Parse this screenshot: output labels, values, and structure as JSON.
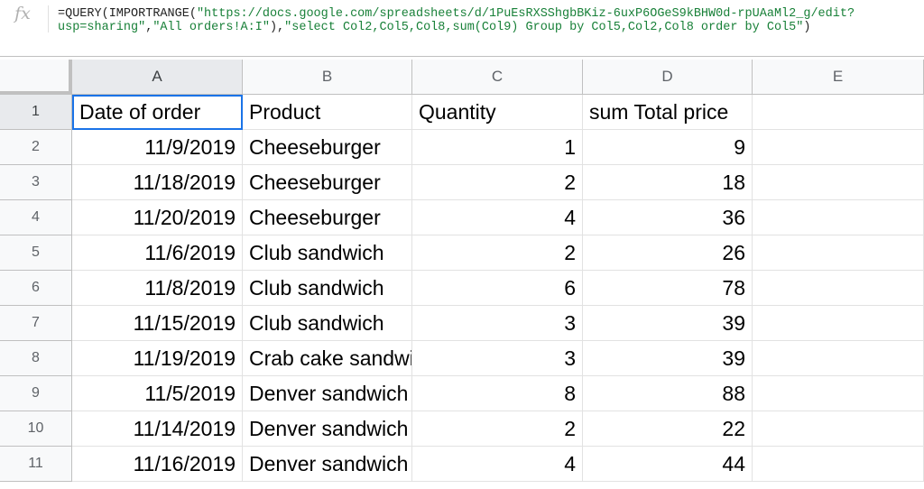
{
  "formula_bar": {
    "icon": "fx-icon",
    "prefix": "=QUERY(IMPORTRANGE(",
    "url_string": "\"https://docs.google.com/spreadsheets/d/1PuEsRXSShgbBKiz-6uxP6OGeS9kBHW0d-rpUAaMl2_g/edit?\nusp=sharing\"",
    "sep1": ",",
    "range_string": "\"All orders!A:I\"",
    "sep2": "),",
    "query_string": "\"select Col2,Col5,Col8,sum(Col9) Group by Col5,Col2,Col8 order by Col5\"",
    "suffix": ")"
  },
  "columns": [
    "A",
    "B",
    "C",
    "D",
    "E"
  ],
  "rows": [
    {
      "num": "1",
      "a": "Date of order",
      "b": "Product",
      "c": "Quantity",
      "d": "sum Total price",
      "e": ""
    },
    {
      "num": "2",
      "a": "11/9/2019",
      "b": "Cheeseburger",
      "c": "1",
      "d": "9",
      "e": ""
    },
    {
      "num": "3",
      "a": "11/18/2019",
      "b": "Cheeseburger",
      "c": "2",
      "d": "18",
      "e": ""
    },
    {
      "num": "4",
      "a": "11/20/2019",
      "b": "Cheeseburger",
      "c": "4",
      "d": "36",
      "e": ""
    },
    {
      "num": "5",
      "a": "11/6/2019",
      "b": "Club sandwich",
      "c": "2",
      "d": "26",
      "e": ""
    },
    {
      "num": "6",
      "a": "11/8/2019",
      "b": "Club sandwich",
      "c": "6",
      "d": "78",
      "e": ""
    },
    {
      "num": "7",
      "a": "11/15/2019",
      "b": "Club sandwich",
      "c": "3",
      "d": "39",
      "e": ""
    },
    {
      "num": "8",
      "a": "11/19/2019",
      "b": "Crab cake sandwich",
      "c": "3",
      "d": "39",
      "e": ""
    },
    {
      "num": "9",
      "a": "11/5/2019",
      "b": "Denver sandwich",
      "c": "8",
      "d": "88",
      "e": ""
    },
    {
      "num": "10",
      "a": "11/14/2019",
      "b": "Denver sandwich",
      "c": "2",
      "d": "22",
      "e": ""
    },
    {
      "num": "11",
      "a": "11/16/2019",
      "b": "Denver sandwich",
      "c": "4",
      "d": "44",
      "e": ""
    }
  ],
  "active_cell": "A1",
  "colors": {
    "selection": "#1a73e8",
    "header_bg": "#f8f9fa",
    "string_green": "#188038"
  }
}
